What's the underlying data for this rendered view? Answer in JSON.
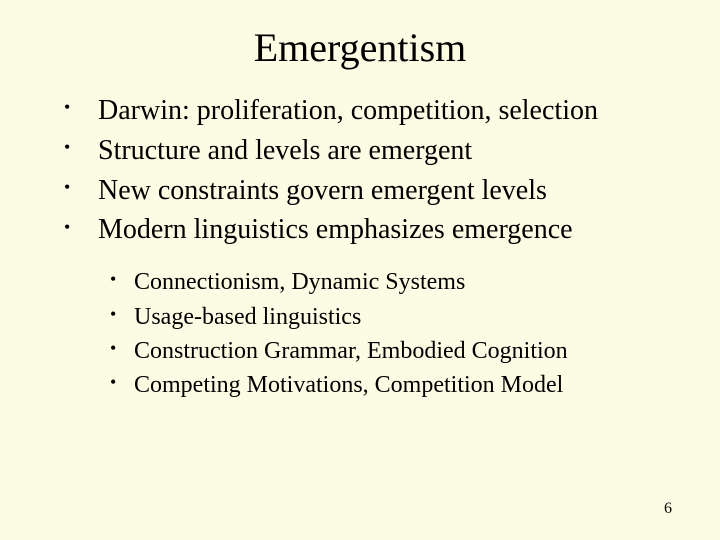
{
  "background_color": "#fcfce4",
  "text_color": "#000000",
  "font_family": "Times New Roman",
  "title": {
    "text": "Emergentism",
    "fontsize": 40,
    "align": "center"
  },
  "bullets_main": {
    "fontsize": 28,
    "marker": "•",
    "items": [
      "Darwin:  proliferation, competition, selection",
      "Structure and levels are emergent",
      "New constraints govern emergent levels",
      "Modern linguistics emphasizes emergence"
    ]
  },
  "bullets_sub": {
    "fontsize": 24,
    "marker": "•",
    "items": [
      "Connectionism, Dynamic Systems",
      "Usage-based linguistics",
      "Construction Grammar, Embodied Cognition",
      "Competing Motivations, Competition Model"
    ]
  },
  "page_number": "6"
}
